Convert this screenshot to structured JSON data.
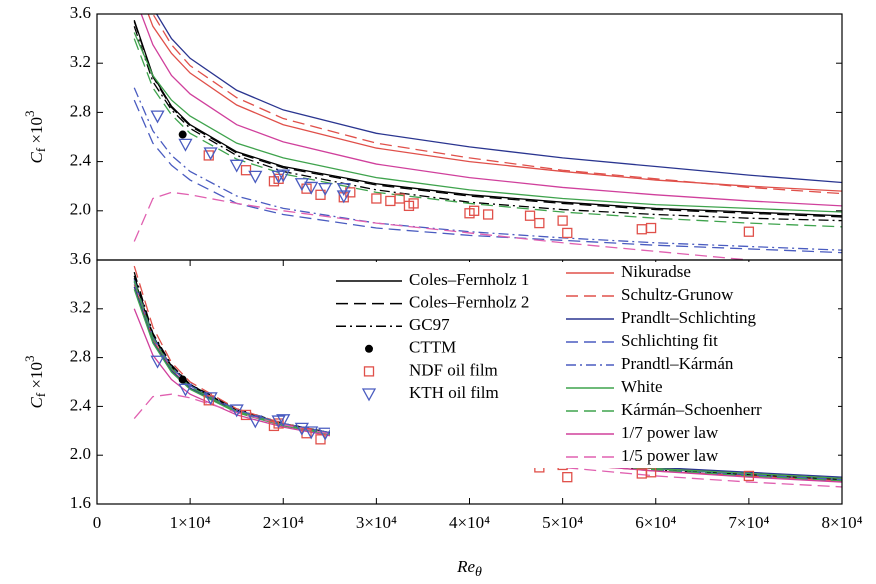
{
  "chart_data": [
    {
      "type": "line",
      "ylabel": {
        "base": "C",
        "sub": "f",
        "rest": " ×10",
        "sup": "3"
      },
      "xlim": [
        0,
        80000
      ],
      "ylim": [
        1.6,
        3.6
      ],
      "yticks": [
        {
          "value": 2.0,
          "label": "2.0"
        },
        {
          "value": 2.4,
          "label": "2.4"
        },
        {
          "value": 2.8,
          "label": "2.8"
        },
        {
          "value": 3.2,
          "label": "3.2"
        },
        {
          "value": 3.6,
          "label": "3.6"
        }
      ],
      "x": [
        4000,
        6000,
        8000,
        10000,
        15000,
        20000,
        30000,
        40000,
        50000,
        60000,
        70000,
        80000
      ],
      "series": [
        {
          "color": "#000000",
          "dash": "solid",
          "values": [
            3.55,
            3.1,
            2.85,
            2.7,
            2.48,
            2.36,
            2.22,
            2.13,
            2.07,
            2.02,
            1.99,
            1.96
          ]
        },
        {
          "color": "#000000",
          "dash": "dashed",
          "values": [
            3.54,
            3.09,
            2.84,
            2.69,
            2.47,
            2.35,
            2.21,
            2.12,
            2.06,
            2.01,
            1.98,
            1.95
          ]
        },
        {
          "color": "#000000",
          "dash": "dashdot",
          "values": [
            3.5,
            3.05,
            2.82,
            2.67,
            2.45,
            2.32,
            2.17,
            2.07,
            2.01,
            1.97,
            1.94,
            1.92
          ]
        },
        {
          "color": "#e0504a",
          "dash": "solid",
          "values": [
            3.9,
            3.5,
            3.28,
            3.12,
            2.86,
            2.7,
            2.51,
            2.4,
            2.32,
            2.25,
            2.2,
            2.16
          ]
        },
        {
          "color": "#e0504a",
          "dash": "dashed",
          "values": [
            4.0,
            3.6,
            3.35,
            3.18,
            2.92,
            2.75,
            2.55,
            2.43,
            2.33,
            2.26,
            2.19,
            2.14
          ]
        },
        {
          "color": "#2a3590",
          "dash": "solid",
          "values": [
            4.1,
            3.65,
            3.4,
            3.24,
            2.98,
            2.82,
            2.63,
            2.52,
            2.43,
            2.36,
            2.29,
            2.23
          ]
        },
        {
          "color": "#4a5cc0",
          "dash": "dashed",
          "values": [
            2.9,
            2.55,
            2.37,
            2.25,
            2.06,
            1.97,
            1.86,
            1.8,
            1.76,
            1.72,
            1.69,
            1.66
          ]
        },
        {
          "color": "#4a5cc0",
          "dash": "dashdot",
          "values": [
            3.0,
            2.65,
            2.45,
            2.32,
            2.12,
            2.02,
            1.9,
            1.83,
            1.78,
            1.74,
            1.71,
            1.68
          ]
        },
        {
          "color": "#3fa34d",
          "dash": "solid",
          "values": [
            3.45,
            3.1,
            2.9,
            2.77,
            2.55,
            2.43,
            2.27,
            2.17,
            2.1,
            2.05,
            2.02,
            1.99
          ]
        },
        {
          "color": "#3fa34d",
          "dash": "dashed",
          "values": [
            3.4,
            3.0,
            2.78,
            2.63,
            2.42,
            2.3,
            2.15,
            2.06,
            1.99,
            1.94,
            1.9,
            1.87
          ]
        },
        {
          "color": "#d0409c",
          "dash": "solid",
          "values": [
            3.75,
            3.35,
            3.1,
            2.95,
            2.7,
            2.56,
            2.38,
            2.27,
            2.19,
            2.13,
            2.08,
            2.04
          ]
        },
        {
          "color": "#e060b0",
          "dash": "dashed",
          "values": [
            1.75,
            2.1,
            2.15,
            2.13,
            2.06,
            2.0,
            1.9,
            1.82,
            1.74,
            1.67,
            1.6,
            1.55
          ]
        }
      ],
      "points": [
        {
          "color": "#000000",
          "marker": "circle",
          "x": [
            9200
          ],
          "values": [
            2.62
          ]
        },
        {
          "color": "#e0504a",
          "marker": "square",
          "x": [
            12000,
            16000,
            19000,
            19500,
            22500,
            24000,
            26500,
            27200,
            30000,
            31500,
            32500,
            33500,
            34000,
            40000,
            40500,
            42000,
            46500,
            47500,
            50000,
            50500,
            58500,
            59500,
            70000
          ],
          "values": [
            2.45,
            2.33,
            2.24,
            2.26,
            2.18,
            2.13,
            2.11,
            2.15,
            2.1,
            2.08,
            2.1,
            2.04,
            2.06,
            1.98,
            2.0,
            1.97,
            1.96,
            1.9,
            1.92,
            1.82,
            1.85,
            1.86,
            1.83
          ]
        },
        {
          "color": "#4a5cc0",
          "marker": "triangle",
          "x": [
            6500,
            9500,
            12200,
            15000,
            17000,
            19500,
            20000,
            22000,
            23000,
            24500,
            26500,
            26500
          ],
          "values": [
            2.77,
            2.54,
            2.47,
            2.37,
            2.28,
            2.28,
            2.29,
            2.22,
            2.19,
            2.18,
            2.18,
            2.12
          ]
        }
      ]
    },
    {
      "type": "line",
      "ylabel": {
        "base": "C",
        "sub": "f",
        "rest": " ×10",
        "sup": "3"
      },
      "xlabel": {
        "base": "Re",
        "sub": "θ"
      },
      "xlim": [
        0,
        80000
      ],
      "ylim": [
        1.6,
        3.6
      ],
      "xticks": [
        0,
        {
          "value": 10000,
          "label": "1×10⁴"
        },
        {
          "value": 20000,
          "label": "2×10⁴"
        },
        {
          "value": 30000,
          "label": "3×10⁴"
        },
        {
          "value": 40000,
          "label": "4×10⁴"
        },
        {
          "value": 50000,
          "label": "5×10⁴"
        },
        {
          "value": 60000,
          "label": "6×10⁴"
        },
        {
          "value": 70000,
          "label": "7×10⁴"
        },
        {
          "value": 80000,
          "label": "8×10⁴"
        }
      ],
      "yticks": [
        {
          "value": 1.6,
          "label": "1.6"
        },
        {
          "value": 2.0,
          "label": "2.0"
        },
        {
          "value": 2.4,
          "label": "2.4"
        },
        {
          "value": 2.8,
          "label": "2.8"
        },
        {
          "value": 3.2,
          "label": "3.2"
        },
        {
          "value": 3.6,
          "label": "3.6"
        }
      ],
      "legend": "upper right",
      "x": [
        4000,
        6000,
        8000,
        10000,
        15000,
        20000,
        30000,
        40000,
        50000,
        60000,
        70000,
        80000
      ],
      "series": [
        {
          "name": "Coles–Fernholz 1",
          "color": "#000000",
          "dash": "solid",
          "values": [
            3.45,
            2.98,
            2.72,
            2.57,
            2.37,
            2.26,
            2.11,
            2.02,
            1.95,
            1.89,
            1.84,
            1.8
          ]
        },
        {
          "name": "Coles–Fernholz 2",
          "color": "#000000",
          "dash": "dashed",
          "values": [
            3.47,
            2.99,
            2.73,
            2.58,
            2.37,
            2.26,
            2.11,
            2.02,
            1.95,
            1.89,
            1.84,
            1.8
          ]
        },
        {
          "name": "GC97",
          "color": "#000000",
          "dash": "dashdot",
          "values": [
            3.5,
            3.0,
            2.74,
            2.58,
            2.38,
            2.26,
            2.11,
            2.01,
            1.94,
            1.88,
            1.84,
            1.8
          ]
        },
        {
          "name": "Nikuradse",
          "color": "#e0504a",
          "dash": "solid",
          "values": [
            3.4,
            2.95,
            2.7,
            2.55,
            2.36,
            2.25,
            2.11,
            2.02,
            1.95,
            1.9,
            1.85,
            1.81
          ]
        },
        {
          "name": "Schultz-Grunow",
          "color": "#e0504a",
          "dash": "dashed",
          "values": [
            3.55,
            3.05,
            2.76,
            2.6,
            2.38,
            2.26,
            2.1,
            2.0,
            1.93,
            1.87,
            1.83,
            1.79
          ]
        },
        {
          "name": "Prandlt–Schlichting",
          "color": "#2a3590",
          "dash": "solid",
          "values": [
            3.38,
            2.93,
            2.69,
            2.55,
            2.36,
            2.25,
            2.11,
            2.02,
            1.96,
            1.9,
            1.86,
            1.82
          ]
        },
        {
          "name": "Schlichting fit",
          "color": "#4a5cc0",
          "dash": "dashed",
          "values": [
            3.42,
            2.96,
            2.71,
            2.56,
            2.36,
            2.25,
            2.1,
            2.01,
            1.94,
            1.88,
            1.83,
            1.79
          ]
        },
        {
          "name": "Prandtl–Kármán",
          "color": "#4a5cc0",
          "dash": "dashdot",
          "values": [
            3.44,
            2.97,
            2.72,
            2.57,
            2.37,
            2.26,
            2.11,
            2.02,
            1.95,
            1.89,
            1.84,
            1.8
          ]
        },
        {
          "name": "White",
          "color": "#3fa34d",
          "dash": "solid",
          "values": [
            3.36,
            2.92,
            2.68,
            2.54,
            2.35,
            2.24,
            2.1,
            2.01,
            1.95,
            1.89,
            1.85,
            1.81
          ]
        },
        {
          "name": "Kármán–Schoenherr",
          "color": "#3fa34d",
          "dash": "dashed",
          "values": [
            3.43,
            2.96,
            2.71,
            2.56,
            2.36,
            2.25,
            2.1,
            2.01,
            1.94,
            1.88,
            1.83,
            1.79
          ]
        },
        {
          "name": "1/7 power law",
          "color": "#d0409c",
          "dash": "solid",
          "values": [
            3.2,
            2.82,
            2.62,
            2.5,
            2.33,
            2.23,
            2.09,
            2.0,
            1.93,
            1.87,
            1.82,
            1.78
          ]
        },
        {
          "name": "1/5 power law",
          "color": "#e060b0",
          "dash": "dashed",
          "values": [
            2.3,
            2.48,
            2.5,
            2.47,
            2.35,
            2.25,
            2.1,
            1.98,
            1.9,
            1.83,
            1.78,
            1.74
          ]
        }
      ],
      "points": [
        {
          "name": "CTTM",
          "color": "#000000",
          "marker": "circle",
          "x": [
            9200
          ],
          "values": [
            2.62
          ]
        },
        {
          "name": "NDF oil film",
          "color": "#e0504a",
          "marker": "square",
          "x": [
            12000,
            16000,
            19000,
            19500,
            22500,
            24000,
            26500,
            27200,
            30000,
            31500,
            32500,
            33500,
            34000,
            40000,
            40500,
            42000,
            46500,
            47500,
            50000,
            50500,
            58500,
            59500,
            70000
          ],
          "values": [
            2.45,
            2.33,
            2.24,
            2.26,
            2.18,
            2.13,
            2.11,
            2.15,
            2.1,
            2.08,
            2.1,
            2.04,
            2.06,
            1.98,
            2.0,
            1.97,
            1.96,
            1.9,
            1.92,
            1.82,
            1.85,
            1.86,
            1.83
          ]
        },
        {
          "name": "KTH oil film",
          "color": "#4a5cc0",
          "marker": "triangle",
          "x": [
            6500,
            9500,
            12200,
            15000,
            17000,
            19500,
            20000,
            22000,
            23000,
            24500,
            26500,
            26500
          ],
          "values": [
            2.77,
            2.54,
            2.47,
            2.37,
            2.28,
            2.28,
            2.29,
            2.22,
            2.19,
            2.18,
            2.18,
            2.12
          ]
        }
      ]
    }
  ]
}
